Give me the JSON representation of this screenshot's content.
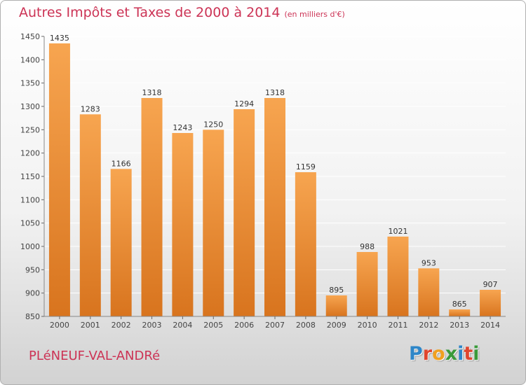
{
  "title": "Autres Impôts et Taxes de 2000 à 2014",
  "title_unit": "(en milliers d'€)",
  "city": "PLéNEUF-VAL-ANDRé",
  "brand": {
    "letters": [
      {
        "char": "P",
        "color": "#2e86c8"
      },
      {
        "char": "r",
        "color": "#e0452e"
      },
      {
        "char": "o",
        "color": "#f0a020"
      },
      {
        "char": "x",
        "color": "#3a9a3a"
      },
      {
        "char": "i",
        "color": "#2e86c8"
      },
      {
        "char": "t",
        "color": "#e0452e"
      },
      {
        "char": "i",
        "color": "#3a9a3a"
      }
    ]
  },
  "colors": {
    "title": "#cc3355",
    "bar_top": "#f7a550",
    "bar_bottom": "#d8741e",
    "grid": "#ffffff"
  },
  "chart_data": {
    "type": "bar",
    "categories": [
      "2000",
      "2001",
      "2002",
      "2003",
      "2004",
      "2005",
      "2006",
      "2007",
      "2008",
      "2009",
      "2010",
      "2011",
      "2012",
      "2013",
      "2014"
    ],
    "values": [
      1435,
      1283,
      1166,
      1318,
      1243,
      1250,
      1294,
      1318,
      1159,
      895,
      988,
      1021,
      953,
      865,
      907
    ],
    "ylim": [
      850,
      1450
    ],
    "yticks": [
      850,
      900,
      950,
      1000,
      1050,
      1100,
      1150,
      1200,
      1250,
      1300,
      1350,
      1400,
      1450
    ],
    "grid": true,
    "data_labels": true
  }
}
